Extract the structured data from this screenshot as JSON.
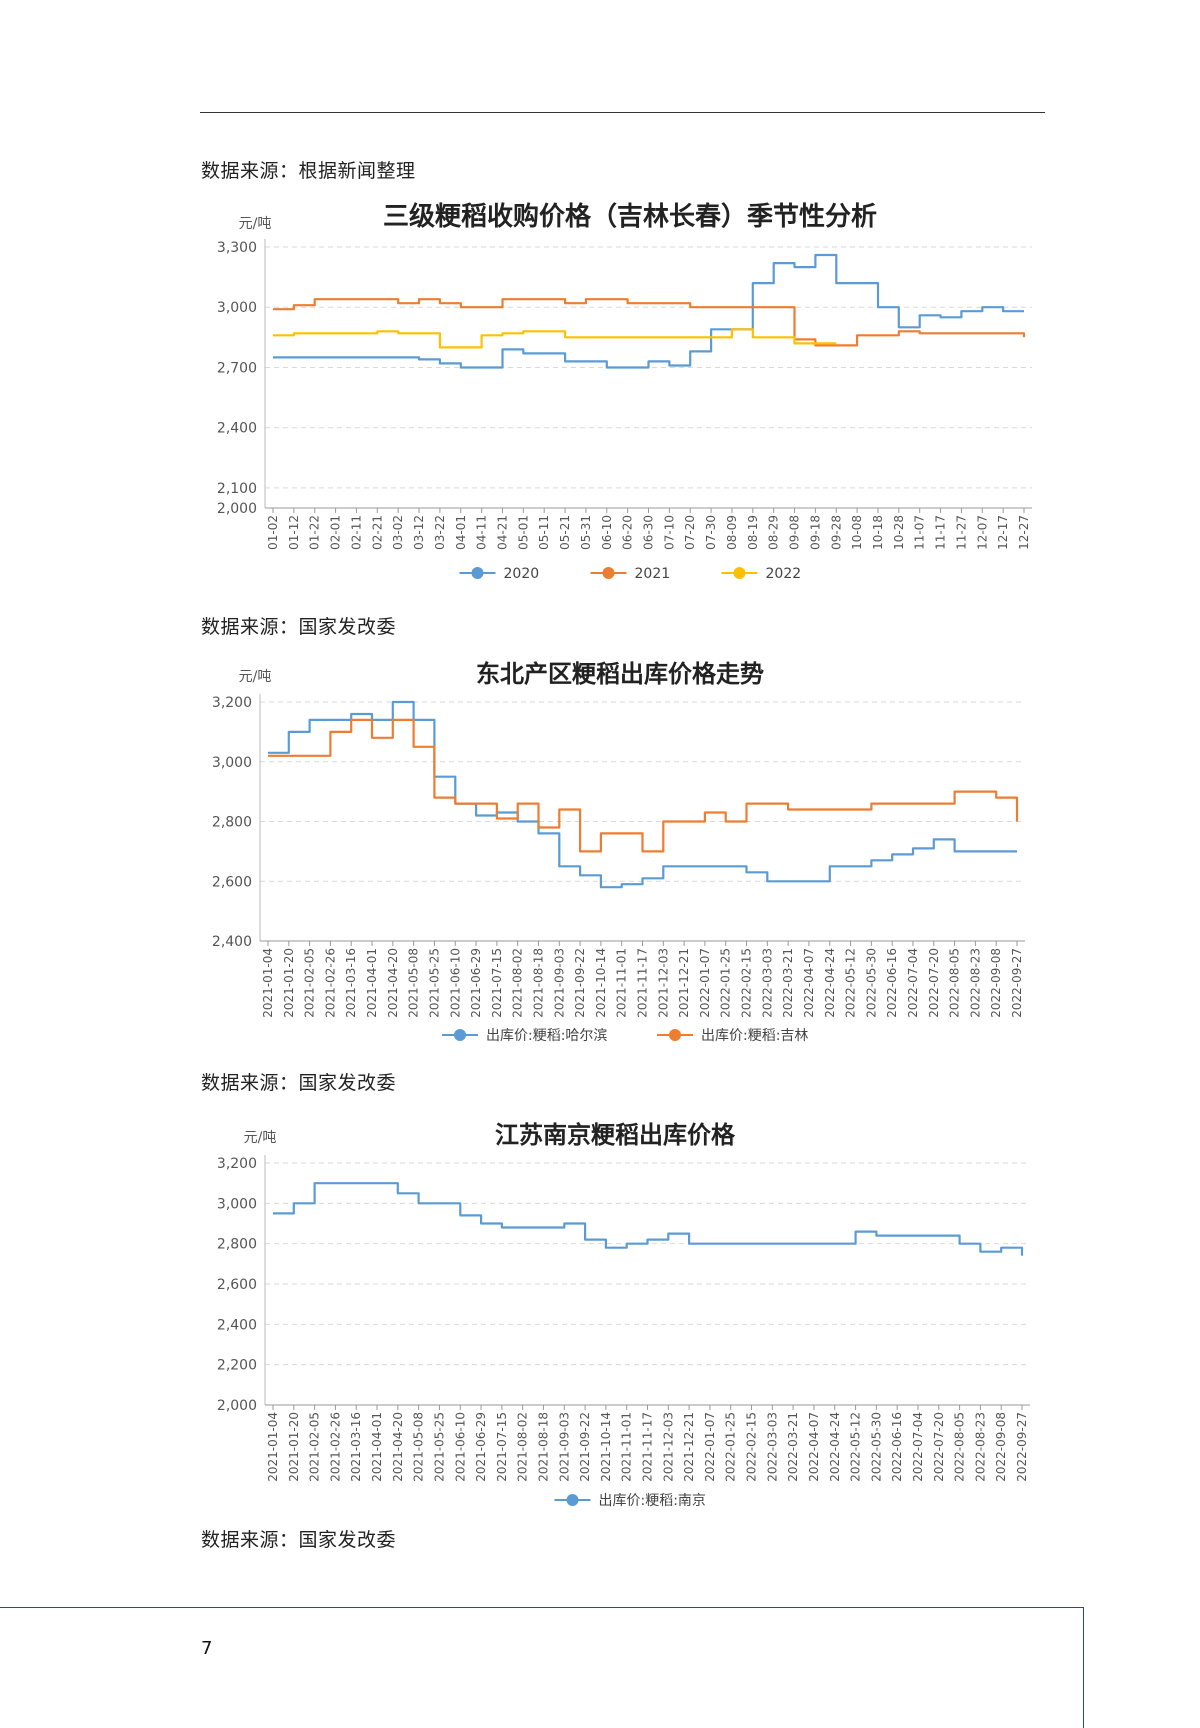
{
  "sources": [
    "数据来源：根据新闻整理",
    "数据来源：国家发改委",
    "数据来源：国家发改委",
    "数据来源：国家发改委"
  ],
  "page_number": "7",
  "chart_data": [
    {
      "type": "line",
      "title": "三级粳稻收购价格（吉林长春）季节性分析",
      "ylabel": "元/吨",
      "ylim": [
        2000,
        3300
      ],
      "yticks": [
        2000,
        2100,
        2400,
        2700,
        3000,
        3300
      ],
      "x": [
        "01-02",
        "01-12",
        "01-22",
        "02-01",
        "02-11",
        "02-21",
        "03-02",
        "03-12",
        "03-22",
        "04-01",
        "04-11",
        "04-21",
        "05-01",
        "05-11",
        "05-21",
        "05-31",
        "06-10",
        "06-20",
        "06-30",
        "07-10",
        "07-20",
        "07-30",
        "08-09",
        "08-19",
        "08-29",
        "09-08",
        "09-18",
        "09-28",
        "10-08",
        "10-18",
        "10-28",
        "11-07",
        "11-17",
        "11-27",
        "12-07",
        "12-17",
        "12-27"
      ],
      "grid": true,
      "legend": "bottom",
      "series": [
        {
          "name": "2020",
          "color": "#5b9bd5",
          "values": [
            2750,
            2750,
            2750,
            2750,
            2750,
            2750,
            2750,
            2740,
            2720,
            2700,
            2700,
            2790,
            2770,
            2770,
            2730,
            2730,
            2700,
            2700,
            2730,
            2710,
            2780,
            2890,
            2890,
            3120,
            3220,
            3200,
            3260,
            3120,
            3120,
            3000,
            2900,
            2960,
            2950,
            2980,
            3000,
            2980,
            2980
          ]
        },
        {
          "name": "2021",
          "color": "#ed7d31",
          "values": [
            2990,
            3010,
            3040,
            3040,
            3040,
            3040,
            3020,
            3040,
            3020,
            3000,
            3000,
            3040,
            3040,
            3040,
            3020,
            3040,
            3040,
            3020,
            3020,
            3020,
            3000,
            3000,
            3000,
            3000,
            3000,
            2840,
            2810,
            2810,
            2860,
            2860,
            2880,
            2870,
            2870,
            2870,
            2870,
            2870,
            2850
          ]
        },
        {
          "name": "2022",
          "color": "#ffc000",
          "values": [
            2860,
            2870,
            2870,
            2870,
            2870,
            2880,
            2870,
            2870,
            2800,
            2800,
            2860,
            2870,
            2880,
            2880,
            2850,
            2850,
            2850,
            2850,
            2850,
            2850,
            2850,
            2850,
            2890,
            2850,
            2850,
            2820,
            2820,
            2820,
            null,
            null,
            null,
            null,
            null,
            null,
            null,
            null,
            null
          ]
        }
      ]
    },
    {
      "type": "line",
      "title": "东北产区粳稻出库价格走势",
      "ylabel": "元/吨",
      "ylim": [
        2400,
        3200
      ],
      "yticks": [
        2400,
        2600,
        2800,
        3000,
        3200
      ],
      "x": [
        "2021-01-04",
        "2021-01-20",
        "2021-02-05",
        "2021-02-26",
        "2021-03-16",
        "2021-04-01",
        "2021-04-20",
        "2021-05-08",
        "2021-05-25",
        "2021-06-10",
        "2021-06-29",
        "2021-07-15",
        "2021-08-02",
        "2021-08-18",
        "2021-09-03",
        "2021-09-22",
        "2021-10-14",
        "2021-11-01",
        "2021-11-17",
        "2021-12-03",
        "2021-12-21",
        "2022-01-07",
        "2022-01-25",
        "2022-02-15",
        "2022-03-03",
        "2022-03-21",
        "2022-04-07",
        "2022-04-24",
        "2022-05-12",
        "2022-05-30",
        "2022-06-16",
        "2022-07-04",
        "2022-07-20",
        "2022-08-05",
        "2022-08-23",
        "2022-09-08",
        "2022-09-27"
      ],
      "grid": true,
      "legend": "bottom",
      "series": [
        {
          "name": "出库价:粳稻:哈尔滨",
          "color": "#5b9bd5",
          "values": [
            3030,
            3100,
            3140,
            3140,
            3160,
            3140,
            3200,
            3140,
            2950,
            2860,
            2820,
            2830,
            2800,
            2760,
            2650,
            2620,
            2580,
            2590,
            2610,
            2650,
            2650,
            2650,
            2650,
            2630,
            2600,
            2600,
            2600,
            2650,
            2650,
            2670,
            2690,
            2710,
            2740,
            2700,
            2700,
            2700,
            2700
          ]
        },
        {
          "name": "出库价:粳稻:吉林",
          "color": "#ed7d31",
          "values": [
            3020,
            3020,
            3020,
            3100,
            3140,
            3080,
            3140,
            3050,
            2880,
            2860,
            2860,
            2810,
            2860,
            2780,
            2840,
            2700,
            2760,
            2760,
            2700,
            2800,
            2800,
            2830,
            2800,
            2860,
            2860,
            2840,
            2840,
            2840,
            2840,
            2860,
            2860,
            2860,
            2860,
            2900,
            2900,
            2880,
            2800
          ]
        }
      ]
    },
    {
      "type": "line",
      "title": "江苏南京粳稻出库价格",
      "ylabel": "元/吨",
      "ylim": [
        2000,
        3200
      ],
      "yticks": [
        2000,
        2200,
        2400,
        2600,
        2800,
        3000,
        3200
      ],
      "x": [
        "2021-01-04",
        "2021-01-20",
        "2021-02-05",
        "2021-02-26",
        "2021-03-16",
        "2021-04-01",
        "2021-04-20",
        "2021-05-08",
        "2021-05-25",
        "2021-06-10",
        "2021-06-29",
        "2021-07-15",
        "2021-08-02",
        "2021-08-18",
        "2021-09-03",
        "2021-09-22",
        "2021-10-14",
        "2021-11-01",
        "2021-11-17",
        "2021-12-03",
        "2021-12-21",
        "2022-01-07",
        "2022-01-25",
        "2022-02-15",
        "2022-03-03",
        "2022-03-21",
        "2022-04-07",
        "2022-04-24",
        "2022-05-12",
        "2022-05-30",
        "2022-06-16",
        "2022-07-04",
        "2022-07-20",
        "2022-08-05",
        "2022-08-23",
        "2022-09-08",
        "2022-09-27"
      ],
      "grid": true,
      "legend": "bottom",
      "series": [
        {
          "name": "出库价:粳稻:南京",
          "color": "#5b9bd5",
          "values": [
            2950,
            3000,
            3100,
            3100,
            3100,
            3100,
            3050,
            3000,
            3000,
            2940,
            2900,
            2880,
            2880,
            2880,
            2900,
            2820,
            2780,
            2800,
            2820,
            2850,
            2800,
            2800,
            2800,
            2800,
            2800,
            2800,
            2800,
            2800,
            2860,
            2840,
            2840,
            2840,
            2840,
            2800,
            2760,
            2780,
            2740
          ]
        }
      ]
    }
  ]
}
